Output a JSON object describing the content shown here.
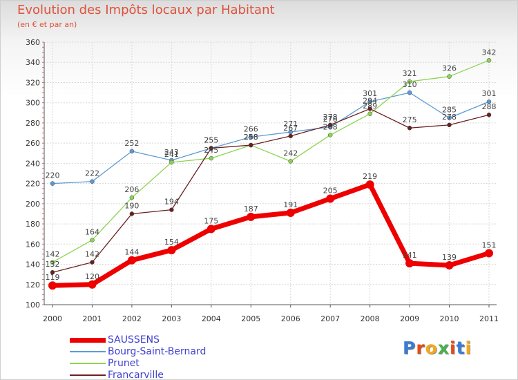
{
  "title": "Evolution des Impôts locaux par Habitant",
  "subtitle": "(en € et par an)",
  "brand": {
    "letters": [
      "P",
      "r",
      "o",
      "x",
      "i",
      "t",
      "i"
    ],
    "colors": [
      "#3a7bd5",
      "#e64a19",
      "#f4a81d",
      "#4caf50",
      "#e64a19",
      "#3a7bd5",
      "#f4a81d"
    ]
  },
  "chart_data": {
    "type": "line",
    "title": "Evolution des Impôts locaux par Habitant",
    "subtitle": "(en € et par an)",
    "xlabel": "",
    "ylabel": "",
    "x": [
      "2000",
      "2001",
      "2002",
      "2003",
      "2004",
      "2005",
      "2006",
      "2007",
      "2008",
      "2009",
      "2010",
      "2011"
    ],
    "ylim": [
      100,
      360
    ],
    "yticks": [
      100,
      120,
      140,
      160,
      180,
      200,
      220,
      240,
      260,
      280,
      300,
      320,
      340,
      360
    ],
    "grid": true,
    "legend": "bottom-left",
    "series": [
      {
        "name": "Bourg-Saint-Bernard",
        "color": "#5b9bd5",
        "values": [
          220,
          222,
          252,
          243,
          255,
          266,
          271,
          276,
          301,
          310,
          285,
          301
        ]
      },
      {
        "name": "Prunet",
        "color": "#8bd450",
        "values": [
          142,
          164,
          206,
          241,
          245,
          258,
          242,
          268,
          289,
          321,
          326,
          342
        ]
      },
      {
        "name": "Francarville",
        "color": "#6b1f1f",
        "values": [
          132,
          142,
          190,
          194,
          255,
          258,
          267,
          278,
          294,
          275,
          278,
          288
        ]
      },
      {
        "name": "SAUSSENS",
        "color": "#ee0000",
        "values": [
          119,
          120,
          144,
          154,
          175,
          187,
          191,
          205,
          219,
          141,
          139,
          151
        ]
      }
    ]
  }
}
